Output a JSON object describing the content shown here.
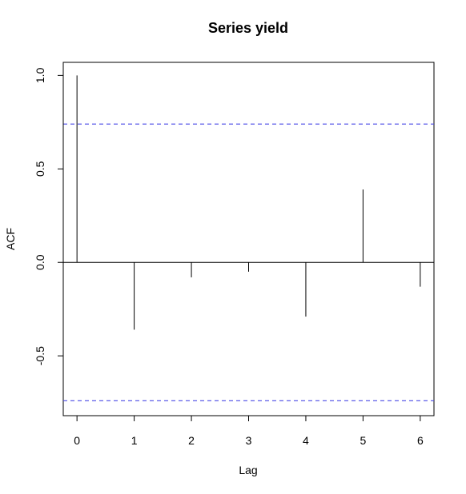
{
  "chart_data": {
    "type": "bar",
    "title": "Series  yield",
    "xlabel": "Lag",
    "ylabel": "ACF",
    "xlim": [
      -0.24,
      6.24
    ],
    "ylim": [
      -0.82,
      1.07
    ],
    "x_ticks": [
      {
        "value": 0,
        "label": "0"
      },
      {
        "value": 1,
        "label": "1"
      },
      {
        "value": 2,
        "label": "2"
      },
      {
        "value": 3,
        "label": "3"
      },
      {
        "value": 4,
        "label": "4"
      },
      {
        "value": 5,
        "label": "5"
      },
      {
        "value": 6,
        "label": "6"
      }
    ],
    "y_ticks": [
      {
        "value": -0.5,
        "label": "-0.5"
      },
      {
        "value": 0.0,
        "label": "0.0"
      },
      {
        "value": 0.5,
        "label": "0.5"
      },
      {
        "value": 1.0,
        "label": "1.0"
      }
    ],
    "x": [
      0,
      1,
      2,
      3,
      4,
      5,
      6
    ],
    "values": [
      1.0,
      -0.36,
      -0.08,
      -0.05,
      -0.29,
      0.39,
      -0.13
    ],
    "confidence_bounds": [
      0.74,
      -0.74
    ],
    "colors": {
      "bars": "#000000",
      "zero_line": "#000000",
      "confidence": "#4a4ae6",
      "frame": "#000000"
    },
    "grid": false,
    "legend": "none"
  }
}
